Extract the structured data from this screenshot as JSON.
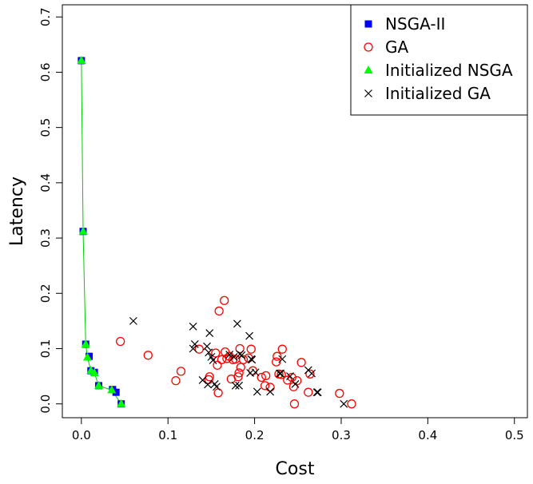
{
  "chart_data": {
    "type": "scatter",
    "title": "",
    "xlabel": "Cost",
    "ylabel": "Latency",
    "xlim": [
      -0.022,
      0.515
    ],
    "ylim": [
      -0.025,
      0.722
    ],
    "xticks": [
      "0.0",
      "0.1",
      "0.2",
      "0.3",
      "0.4",
      "0.5"
    ],
    "yticks": [
      "0.0",
      "0.1",
      "0.2",
      "0.3",
      "0.4",
      "0.5",
      "0.6",
      "0.7"
    ],
    "grid": false,
    "legend_position": "top-right",
    "series": [
      {
        "name": "NSGA-II",
        "marker": "filled-square",
        "color": "#0000ff",
        "points": [
          [
            0.0,
            0.621
          ],
          [
            0.002,
            0.312
          ],
          [
            0.005,
            0.108
          ],
          [
            0.009,
            0.086
          ],
          [
            0.011,
            0.06
          ],
          [
            0.015,
            0.057
          ],
          [
            0.02,
            0.033
          ],
          [
            0.036,
            0.026
          ],
          [
            0.04,
            0.021
          ],
          [
            0.046,
            0.0
          ]
        ]
      },
      {
        "name": "GA",
        "marker": "open-circle",
        "color": "#ff0000",
        "points": [
          [
            0.045,
            0.113
          ],
          [
            0.077,
            0.088
          ],
          [
            0.109,
            0.042
          ],
          [
            0.115,
            0.059
          ],
          [
            0.136,
            0.099
          ],
          [
            0.147,
            0.044
          ],
          [
            0.148,
            0.049
          ],
          [
            0.155,
            0.092
          ],
          [
            0.157,
            0.07
          ],
          [
            0.158,
            0.02
          ],
          [
            0.159,
            0.168
          ],
          [
            0.162,
            0.08
          ],
          [
            0.165,
            0.187
          ],
          [
            0.166,
            0.094
          ],
          [
            0.168,
            0.082
          ],
          [
            0.171,
            0.086
          ],
          [
            0.173,
            0.045
          ],
          [
            0.175,
            0.08
          ],
          [
            0.178,
            0.081
          ],
          [
            0.181,
            0.049
          ],
          [
            0.182,
            0.056
          ],
          [
            0.183,
            0.1
          ],
          [
            0.184,
            0.066
          ],
          [
            0.187,
            0.08
          ],
          [
            0.193,
            0.083
          ],
          [
            0.196,
            0.099
          ],
          [
            0.198,
            0.06
          ],
          [
            0.208,
            0.048
          ],
          [
            0.212,
            0.033
          ],
          [
            0.213,
            0.051
          ],
          [
            0.218,
            0.03
          ],
          [
            0.225,
            0.076
          ],
          [
            0.226,
            0.086
          ],
          [
            0.228,
            0.054
          ],
          [
            0.231,
            0.053
          ],
          [
            0.232,
            0.099
          ],
          [
            0.238,
            0.043
          ],
          [
            0.243,
            0.048
          ],
          [
            0.245,
            0.031
          ],
          [
            0.246,
            0.0
          ],
          [
            0.249,
            0.042
          ],
          [
            0.254,
            0.075
          ],
          [
            0.262,
            0.021
          ],
          [
            0.264,
            0.054
          ],
          [
            0.298,
            0.019
          ],
          [
            0.312,
            0.0
          ]
        ]
      },
      {
        "name": "Initialized NSGA",
        "marker": "filled-triangle",
        "color": "#00ff00",
        "points": [
          [
            0.0,
            0.621
          ],
          [
            0.002,
            0.312
          ],
          [
            0.005,
            0.108
          ],
          [
            0.007,
            0.084
          ],
          [
            0.011,
            0.06
          ],
          [
            0.015,
            0.056
          ],
          [
            0.02,
            0.033
          ],
          [
            0.035,
            0.025
          ],
          [
            0.046,
            0.0
          ]
        ]
      },
      {
        "name": "Initialized GA",
        "marker": "cross",
        "color": "#000000",
        "points": [
          [
            0.06,
            0.15
          ],
          [
            0.129,
            0.14
          ],
          [
            0.129,
            0.1
          ],
          [
            0.131,
            0.108
          ],
          [
            0.14,
            0.043
          ],
          [
            0.145,
            0.104
          ],
          [
            0.146,
            0.035
          ],
          [
            0.147,
            0.093
          ],
          [
            0.148,
            0.128
          ],
          [
            0.15,
            0.085
          ],
          [
            0.152,
            0.079
          ],
          [
            0.154,
            0.036
          ],
          [
            0.156,
            0.031
          ],
          [
            0.171,
            0.089
          ],
          [
            0.176,
            0.085
          ],
          [
            0.178,
            0.033
          ],
          [
            0.18,
            0.145
          ],
          [
            0.182,
            0.033
          ],
          [
            0.183,
            0.09
          ],
          [
            0.185,
            0.088
          ],
          [
            0.194,
            0.123
          ],
          [
            0.195,
            0.056
          ],
          [
            0.196,
            0.081
          ],
          [
            0.197,
            0.08
          ],
          [
            0.201,
            0.057
          ],
          [
            0.203,
            0.022
          ],
          [
            0.218,
            0.022
          ],
          [
            0.229,
            0.055
          ],
          [
            0.23,
            0.055
          ],
          [
            0.232,
            0.081
          ],
          [
            0.241,
            0.05
          ],
          [
            0.247,
            0.036
          ],
          [
            0.262,
            0.061
          ],
          [
            0.266,
            0.055
          ],
          [
            0.272,
            0.021
          ],
          [
            0.273,
            0.021
          ],
          [
            0.303,
            0.0
          ]
        ]
      }
    ],
    "connected_line": {
      "series": "Initialized NSGA",
      "color": "#00cc00"
    }
  }
}
